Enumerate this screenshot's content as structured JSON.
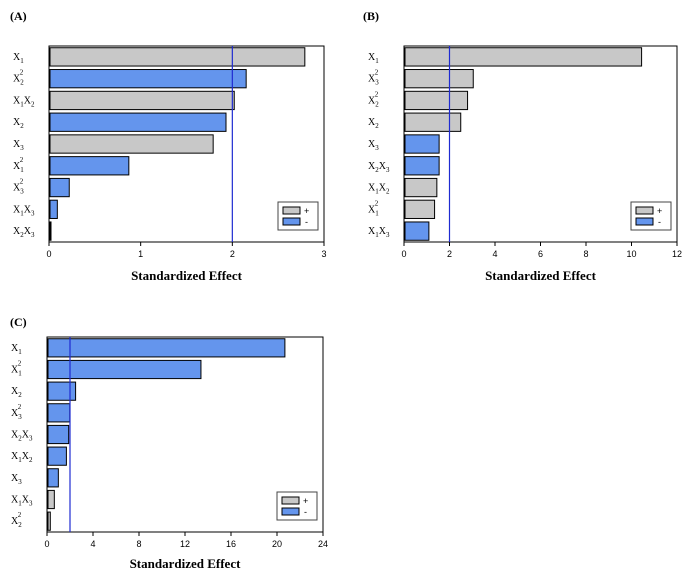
{
  "colors": {
    "positive": "#c8c8c8",
    "negative": "#6495ed",
    "refline": "#1f2bd1",
    "frame": "#000000"
  },
  "legend": {
    "positive": "+",
    "negative": "-"
  },
  "chart_data": [
    {
      "panel": "(A)",
      "type": "bar",
      "orientation": "horizontal",
      "xlabel": "Standardized  Effect",
      "xlim": [
        0,
        3
      ],
      "ticks": [
        0,
        1,
        2,
        3
      ],
      "reference_line": 2.0,
      "legend_position": "bottom-right",
      "bars": [
        {
          "label": "X1",
          "base": "X",
          "sub": "1",
          "sup": "",
          "value": 2.78,
          "sign": "+"
        },
        {
          "label": "X2^2",
          "base": "X",
          "sub": "2",
          "sup": "2",
          "value": 2.14,
          "sign": "-"
        },
        {
          "label": "X1X2",
          "base": "X",
          "sub": "1",
          "sup": "",
          "base2": "X",
          "sub2": "2",
          "value": 2.01,
          "sign": "+"
        },
        {
          "label": "X2",
          "base": "X",
          "sub": "2",
          "sup": "",
          "value": 1.92,
          "sign": "-"
        },
        {
          "label": "X3",
          "base": "X",
          "sub": "3",
          "sup": "",
          "value": 1.78,
          "sign": "+"
        },
        {
          "label": "X1^2",
          "base": "X",
          "sub": "1",
          "sup": "2",
          "value": 0.86,
          "sign": "-"
        },
        {
          "label": "X3^2",
          "base": "X",
          "sub": "3",
          "sup": "2",
          "value": 0.21,
          "sign": "-"
        },
        {
          "label": "X1X3",
          "base": "X",
          "sub": "1",
          "sup": "",
          "base2": "X",
          "sub2": "3",
          "value": 0.08,
          "sign": "-"
        },
        {
          "label": "X2X3",
          "base": "X",
          "sub": "2",
          "sup": "",
          "base2": "X",
          "sub2": "3",
          "value": 0.01,
          "sign": "-"
        }
      ]
    },
    {
      "panel": "(B)",
      "type": "bar",
      "orientation": "horizontal",
      "xlabel": "Standardized  Effect",
      "xlim": [
        0,
        12
      ],
      "ticks": [
        0,
        2,
        4,
        6,
        8,
        10,
        12
      ],
      "reference_line": 2.0,
      "legend_position": "bottom-right",
      "bars": [
        {
          "label": "X1",
          "base": "X",
          "sub": "1",
          "sup": "",
          "value": 10.4,
          "sign": "+"
        },
        {
          "label": "X3^2",
          "base": "X",
          "sub": "3",
          "sup": "2",
          "value": 3.0,
          "sign": "+"
        },
        {
          "label": "X2^2",
          "base": "X",
          "sub": "2",
          "sup": "2",
          "value": 2.75,
          "sign": "+"
        },
        {
          "label": "X2",
          "base": "X",
          "sub": "2",
          "sup": "",
          "value": 2.45,
          "sign": "+"
        },
        {
          "label": "X3",
          "base": "X",
          "sub": "3",
          "sup": "",
          "value": 1.5,
          "sign": "-"
        },
        {
          "label": "X2X3",
          "base": "X",
          "sub": "2",
          "sup": "",
          "base2": "X",
          "sub2": "3",
          "value": 1.5,
          "sign": "-"
        },
        {
          "label": "X1X2",
          "base": "X",
          "sub": "1",
          "sup": "",
          "base2": "X",
          "sub2": "2",
          "value": 1.4,
          "sign": "+"
        },
        {
          "label": "X1^2",
          "base": "X",
          "sub": "1",
          "sup": "2",
          "value": 1.3,
          "sign": "+"
        },
        {
          "label": "X1X3",
          "base": "X",
          "sub": "1",
          "sup": "",
          "base2": "X",
          "sub2": "3",
          "value": 1.05,
          "sign": "-"
        }
      ]
    },
    {
      "panel": "(C)",
      "type": "bar",
      "orientation": "horizontal",
      "xlabel": "Standardized  Effect",
      "xlim": [
        0,
        24
      ],
      "ticks": [
        0,
        4,
        8,
        12,
        16,
        20,
        24
      ],
      "reference_line": 2.0,
      "legend_position": "bottom-right",
      "bars": [
        {
          "label": "X1",
          "base": "X",
          "sub": "1",
          "sup": "",
          "value": 20.6,
          "sign": "-"
        },
        {
          "label": "X1^2",
          "base": "X",
          "sub": "1",
          "sup": "2",
          "value": 13.3,
          "sign": "-"
        },
        {
          "label": "X2",
          "base": "X",
          "sub": "2",
          "sup": "",
          "value": 2.4,
          "sign": "-"
        },
        {
          "label": "X3^2",
          "base": "X",
          "sub": "3",
          "sup": "2",
          "value": 1.9,
          "sign": "-"
        },
        {
          "label": "X2X3",
          "base": "X",
          "sub": "2",
          "sup": "",
          "base2": "X",
          "sub2": "3",
          "value": 1.8,
          "sign": "-"
        },
        {
          "label": "X1X2",
          "base": "X",
          "sub": "1",
          "sup": "",
          "base2": "X",
          "sub2": "2",
          "value": 1.6,
          "sign": "-"
        },
        {
          "label": "X3",
          "base": "X",
          "sub": "3",
          "sup": "",
          "value": 0.9,
          "sign": "-"
        },
        {
          "label": "X1X3",
          "base": "X",
          "sub": "1",
          "sup": "",
          "base2": "X",
          "sub2": "3",
          "value": 0.55,
          "sign": "+"
        },
        {
          "label": "X2^2",
          "base": "X",
          "sub": "2",
          "sup": "2",
          "value": 0.2,
          "sign": "+"
        }
      ]
    }
  ]
}
